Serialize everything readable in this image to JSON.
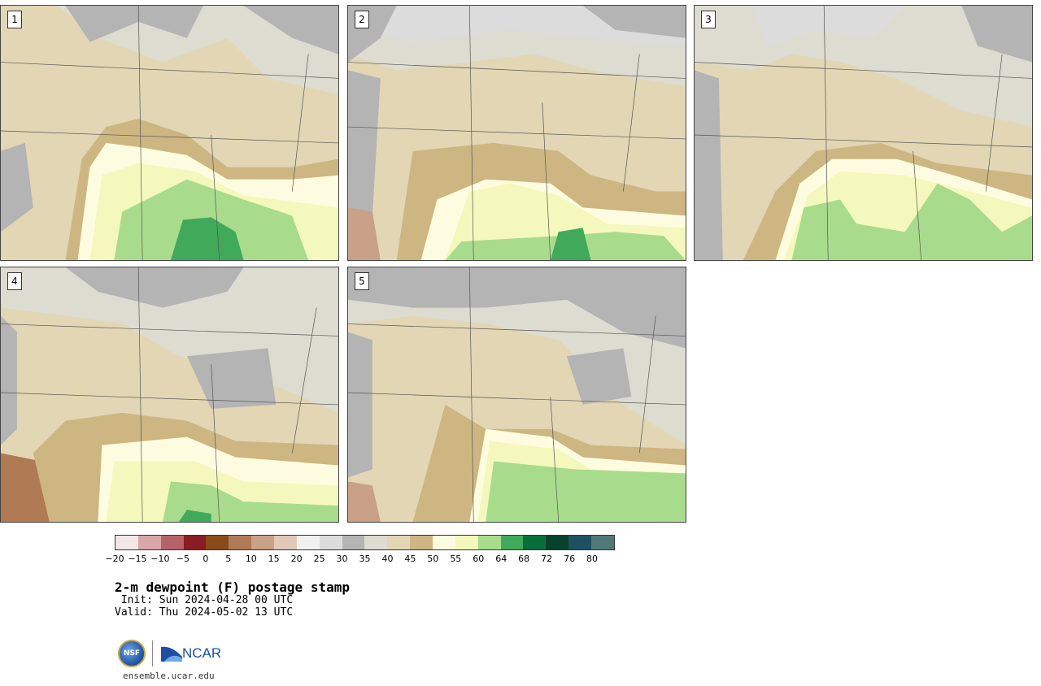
{
  "panels": [
    {
      "label": "1"
    },
    {
      "label": "2"
    },
    {
      "label": "3"
    },
    {
      "label": "4"
    },
    {
      "label": "5"
    }
  ],
  "colorbar": {
    "colors": [
      "#f2e6e6",
      "#d9a6aa",
      "#b5636a",
      "#8a1c24",
      "#8a4a1a",
      "#b07a55",
      "#c9a088",
      "#e2c8b8",
      "#f0f0f0",
      "#dcdcdc",
      "#b4b4b4",
      "#dcdcd0",
      "#e2d6b4",
      "#cdb682",
      "#fefce0",
      "#f5f8bc",
      "#a8dc8c",
      "#41aa5a",
      "#0a6e3c",
      "#08412c",
      "#1e5064",
      "#507878"
    ],
    "ticks": [
      "−20",
      "−15",
      "−10",
      "−5",
      "0",
      "5",
      "10",
      "15",
      "20",
      "25",
      "30",
      "35",
      "40",
      "45",
      "50",
      "55",
      "60",
      "64",
      "68",
      "72",
      "76",
      "80"
    ]
  },
  "title": "2-m dewpoint (F) postage stamp",
  "init": " Init: Sun 2024-04-28 00 UTC",
  "valid": "Valid: Thu 2024-05-02 13 UTC",
  "logo": {
    "nsf_text": "NSF",
    "ncar_text": "NCAR"
  },
  "site": "ensemble.ucar.edu"
}
